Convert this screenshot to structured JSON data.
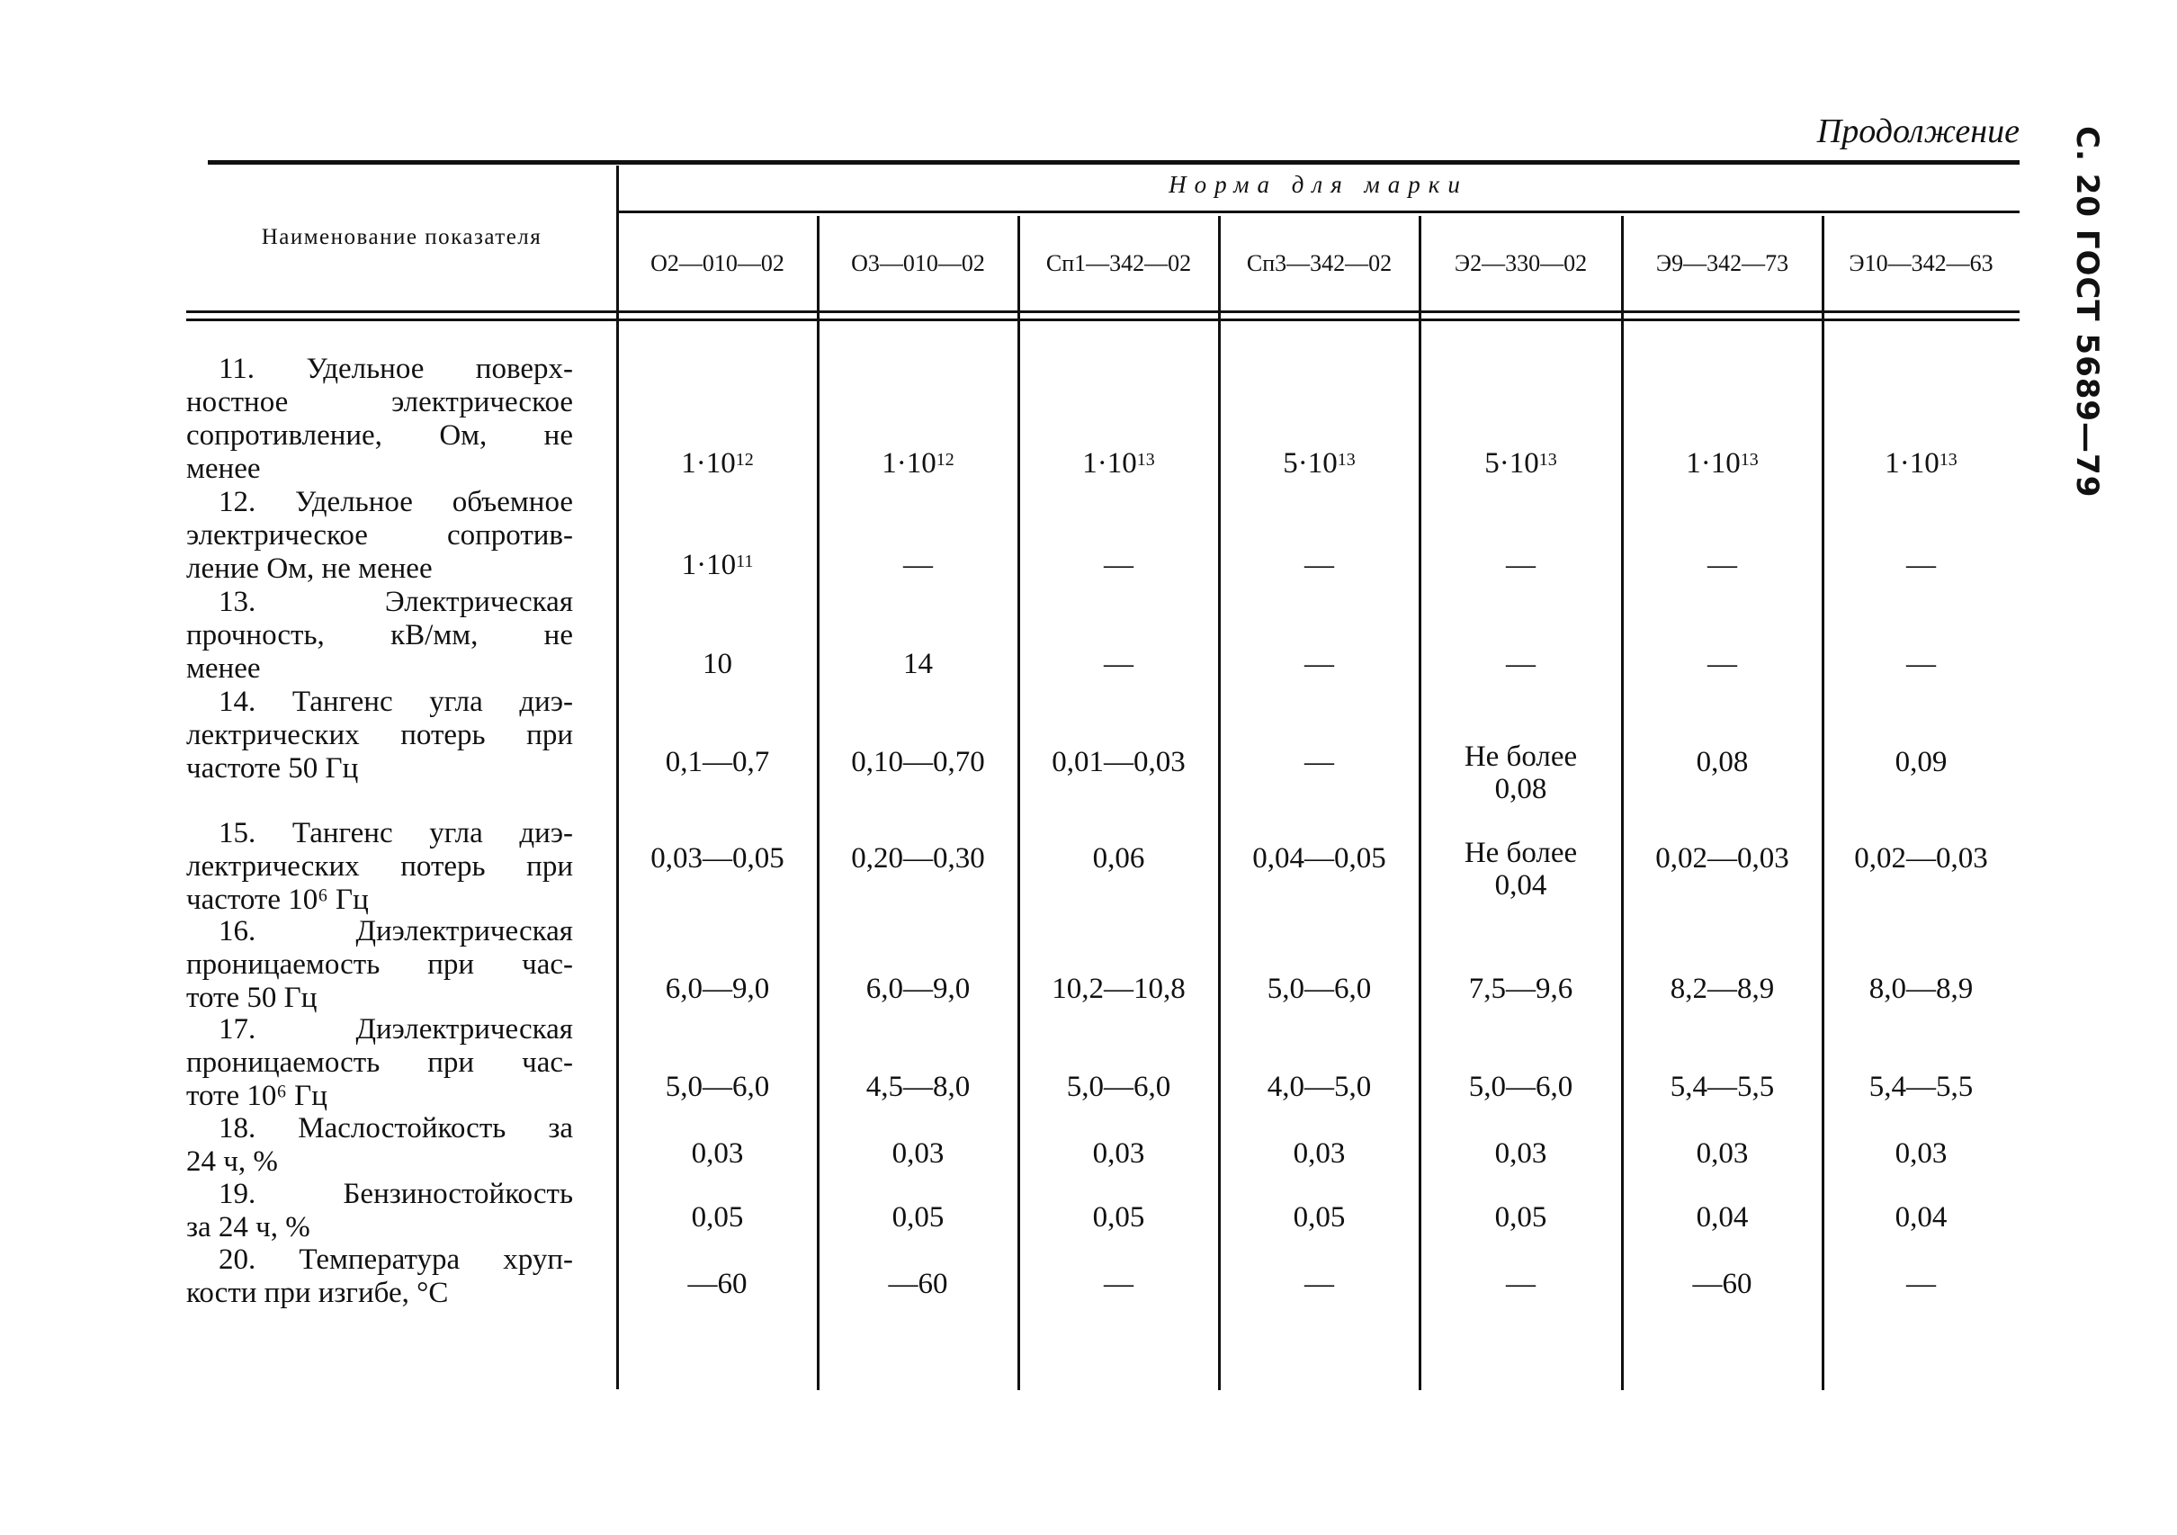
{
  "header": {
    "continued": "Продолжение",
    "side_title": "С. 20 ГОСТ 5689—79",
    "name_column": "Наименование показателя",
    "norm_group": "Норма для марки",
    "grades": [
      "О2—010—02",
      "О3—010—02",
      "Сп1—342—02",
      "Сп3—342—02",
      "Э2—330—02",
      "Э9—342—73",
      "Э10—342—63"
    ]
  },
  "rows": [
    {
      "label": [
        "11. Удельное поверх-",
        "ностное электрическое",
        "сопротивление, Ом, не",
        "менее"
      ],
      "values": [
        {
          "text": "1·10",
          "sup": "12"
        },
        {
          "text": "1·10",
          "sup": "12"
        },
        {
          "text": "1·10",
          "sup": "13"
        },
        {
          "text": "5·10",
          "sup": "13"
        },
        {
          "text": "5·10",
          "sup": "13"
        },
        {
          "text": "1·10",
          "sup": "13"
        },
        {
          "text": "1·10",
          "sup": "13"
        }
      ]
    },
    {
      "label": [
        "12. Удельное объемное",
        "электрическое сопротив-",
        "ление Ом, не менее"
      ],
      "values": [
        {
          "text": "1·10",
          "sup": "11"
        },
        {
          "text": "—"
        },
        {
          "text": "—"
        },
        {
          "text": "—"
        },
        {
          "text": "—"
        },
        {
          "text": "—"
        },
        {
          "text": "—"
        }
      ]
    },
    {
      "label": [
        "13. Электрическая",
        "прочность, кВ/мм, не",
        "менее"
      ],
      "values": [
        {
          "text": "10"
        },
        {
          "text": "14"
        },
        {
          "text": "—"
        },
        {
          "text": "—"
        },
        {
          "text": "—"
        },
        {
          "text": "—"
        },
        {
          "text": "—"
        }
      ]
    },
    {
      "label": [
        "14. Тангенс угла диэ-",
        "лектрических потерь при",
        "частоте 50 Гц"
      ],
      "values": [
        {
          "text": "0,1—0,7"
        },
        {
          "text": "0,10—0,70"
        },
        {
          "text": "0,01—0,03"
        },
        {
          "text": "—"
        },
        {
          "text": "Не более 0,08"
        },
        {
          "text": "0,08"
        },
        {
          "text": "0,09"
        }
      ]
    },
    {
      "label": [
        "15. Тангенс угла диэ-",
        "лектрических потерь при",
        "частоте 10⁶ Гц"
      ],
      "values": [
        {
          "text": "0,03—0,05"
        },
        {
          "text": "0,20—0,30"
        },
        {
          "text": "0,06"
        },
        {
          "text": "0,04—0,05"
        },
        {
          "text": "Не более 0,04"
        },
        {
          "text": "0,02—0,03"
        },
        {
          "text": "0,02—0,03"
        }
      ]
    },
    {
      "label": [
        "16. Диэлектрическая",
        "проницаемость при час-",
        "тоте 50 Гц"
      ],
      "values": [
        {
          "text": "6,0—9,0"
        },
        {
          "text": "6,0—9,0"
        },
        {
          "text": "10,2—10,8"
        },
        {
          "text": "5,0—6,0"
        },
        {
          "text": "7,5—9,6"
        },
        {
          "text": "8,2—8,9"
        },
        {
          "text": "8,0—8,9"
        }
      ]
    },
    {
      "label": [
        "17. Диэлектрическая",
        "проницаемость при час-",
        "тоте 10⁶ Гц"
      ],
      "values": [
        {
          "text": "5,0—6,0"
        },
        {
          "text": "4,5—8,0"
        },
        {
          "text": "5,0—6,0"
        },
        {
          "text": "4,0—5,0"
        },
        {
          "text": "5,0—6,0"
        },
        {
          "text": "5,4—5,5"
        },
        {
          "text": "5,4—5,5"
        }
      ]
    },
    {
      "label": [
        "18. Маслостойкость за",
        "24 ч, %"
      ],
      "values": [
        {
          "text": "0,03"
        },
        {
          "text": "0,03"
        },
        {
          "text": "0,03"
        },
        {
          "text": "0,03"
        },
        {
          "text": "0,03"
        },
        {
          "text": "0,03"
        },
        {
          "text": "0,03"
        }
      ]
    },
    {
      "label": [
        "19. Бензиностойкость",
        "за 24 ч, %"
      ],
      "values": [
        {
          "text": "0,05"
        },
        {
          "text": "0,05"
        },
        {
          "text": "0,05"
        },
        {
          "text": "0,05"
        },
        {
          "text": "0,05"
        },
        {
          "text": "0,04"
        },
        {
          "text": "0,04"
        }
      ]
    },
    {
      "label": [
        "20. Температура хруп-",
        "кости при изгибе, °С"
      ],
      "values": [
        {
          "text": "—60"
        },
        {
          "text": "—60"
        },
        {
          "text": "—"
        },
        {
          "text": "—"
        },
        {
          "text": "—"
        },
        {
          "text": "—60"
        },
        {
          "text": "—"
        }
      ]
    }
  ]
}
